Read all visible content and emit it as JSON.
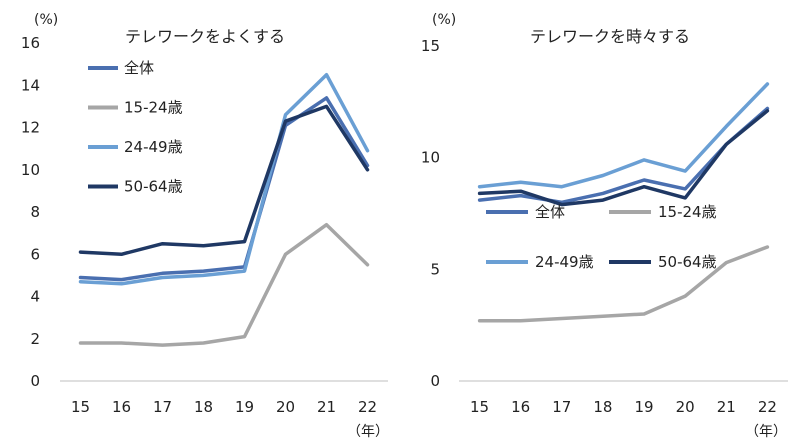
{
  "chart_data": [
    {
      "type": "line",
      "title": "テレワークをよくする",
      "y_unit_label": "(%)",
      "x_unit_label": "（年）",
      "categories": [
        "15",
        "16",
        "17",
        "18",
        "19",
        "20",
        "21",
        "22"
      ],
      "ylim": [
        0,
        16
      ],
      "y_ticks": [
        "0",
        "2",
        "4",
        "6",
        "8",
        "10",
        "12",
        "14",
        "16"
      ],
      "grid": false,
      "legend_placement": "top-left",
      "series": [
        {
          "name": "全体",
          "color": "#4a6fb0",
          "values": [
            4.9,
            4.8,
            5.1,
            5.2,
            5.4,
            12.1,
            13.4,
            10.2
          ]
        },
        {
          "name": "15-24歳",
          "color": "#a6a6a6",
          "values": [
            1.8,
            1.8,
            1.7,
            1.8,
            2.1,
            6.0,
            7.4,
            5.5
          ]
        },
        {
          "name": "24-49歳",
          "color": "#6a9fd4",
          "values": [
            4.7,
            4.6,
            4.9,
            5.0,
            5.2,
            12.6,
            14.5,
            10.9
          ]
        },
        {
          "name": "50-64歳",
          "color": "#1f3864",
          "values": [
            6.1,
            6.0,
            6.5,
            6.4,
            6.6,
            12.3,
            13.0,
            10.0
          ]
        }
      ]
    },
    {
      "type": "line",
      "title": "テレワークを時々する",
      "y_unit_label": "(%)",
      "x_unit_label": "（年）",
      "categories": [
        "15",
        "16",
        "17",
        "18",
        "19",
        "20",
        "21",
        "22"
      ],
      "ylim": [
        0,
        15
      ],
      "y_ticks": [
        "0",
        "5",
        "10",
        "15"
      ],
      "grid": false,
      "legend_placement": "center",
      "series": [
        {
          "name": "全体",
          "color": "#4a6fb0",
          "values": [
            8.1,
            8.3,
            8.0,
            8.4,
            9.0,
            8.6,
            10.6,
            12.2
          ]
        },
        {
          "name": "15-24歳",
          "color": "#a6a6a6",
          "values": [
            2.7,
            2.7,
            2.8,
            2.9,
            3.0,
            3.8,
            5.3,
            6.0
          ]
        },
        {
          "name": "24-49歳",
          "color": "#6a9fd4",
          "values": [
            8.7,
            8.9,
            8.7,
            9.2,
            9.9,
            9.4,
            11.4,
            13.3
          ]
        },
        {
          "name": "50-64歳",
          "color": "#1f3864",
          "values": [
            8.4,
            8.5,
            7.9,
            8.1,
            8.7,
            8.2,
            10.6,
            12.1
          ]
        }
      ]
    }
  ]
}
